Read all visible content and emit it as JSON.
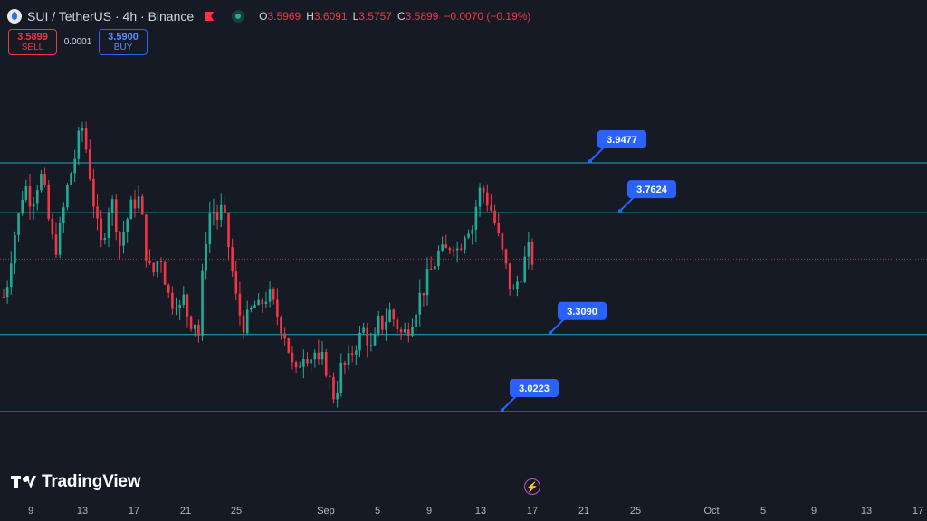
{
  "header": {
    "title": "SUI / TetherUS · 4h · Binance",
    "ohlc": [
      {
        "k": "O",
        "v": "3.5969"
      },
      {
        "k": "H",
        "v": "3.6091"
      },
      {
        "k": "L",
        "v": "3.5757"
      },
      {
        "k": "C",
        "v": "3.5899"
      }
    ],
    "change": "−0.0070 (−0.19%)"
  },
  "trade": {
    "sell_price": "3.5899",
    "sell_label": "SELL",
    "spread": "0.0001",
    "buy_price": "3.5900",
    "buy_label": "BUY"
  },
  "branding": {
    "logo_text": "TradingView"
  },
  "colors": {
    "background": "#161a25",
    "up": "#22ab94",
    "down": "#f23645",
    "level_line": "#26a6c9",
    "label_bg": "#2962ff",
    "current_price_line": "#f23645"
  },
  "icons": [
    "sui-logo-icon",
    "flag-icon",
    "market-status-icon",
    "tradingview-logo-icon",
    "bolt-icon"
  ],
  "chart_data": {
    "type": "candlestick",
    "symbol": "SUI / TetherUS",
    "interval": "4h",
    "exchange": "Binance",
    "x_tick_labels": [
      "9",
      "13",
      "17",
      "21",
      "25",
      "Sep",
      "5",
      "9",
      "13",
      "17",
      "21",
      "25",
      "Oct",
      "5",
      "9",
      "13",
      "17"
    ],
    "y_range": [
      2.7,
      4.5
    ],
    "current_price": 3.5899,
    "grid": false,
    "horizontal_levels": [
      {
        "value": 3.9477,
        "label": "3.9477"
      },
      {
        "value": 3.7624,
        "label": "3.7624"
      },
      {
        "value": 3.309,
        "label": "3.3090"
      },
      {
        "value": 3.0223,
        "label": "3.0223"
      }
    ],
    "price_path": [
      3.45,
      3.52,
      3.66,
      3.72,
      3.83,
      3.86,
      3.8,
      3.86,
      3.9,
      3.82,
      3.7,
      3.62,
      3.68,
      3.78,
      3.88,
      3.94,
      4.02,
      4.08,
      3.98,
      3.86,
      3.72,
      3.64,
      3.72,
      3.82,
      3.76,
      3.64,
      3.7,
      3.76,
      3.8,
      3.82,
      3.72,
      3.58,
      3.52,
      3.58,
      3.6,
      3.5,
      3.42,
      3.46,
      3.4,
      3.45,
      3.35,
      3.38,
      3.3,
      3.55,
      3.74,
      3.78,
      3.74,
      3.77,
      3.7,
      3.58,
      3.45,
      3.38,
      3.34,
      3.38,
      3.42,
      3.4,
      3.44,
      3.46,
      3.42,
      3.38,
      3.34,
      3.3,
      3.2,
      3.15,
      3.22,
      3.26,
      3.22,
      3.25,
      3.18,
      3.22,
      3.16,
      3.08,
      3.12,
      3.2,
      3.18,
      3.24,
      3.28,
      3.3,
      3.34,
      3.24,
      3.28,
      3.36,
      3.34,
      3.4,
      3.37,
      3.34,
      3.3,
      3.33,
      3.37,
      3.42,
      3.46,
      3.5,
      3.54,
      3.58,
      3.62,
      3.6,
      3.64,
      3.66,
      3.62,
      3.68,
      3.72,
      3.7,
      3.8,
      3.86,
      3.82,
      3.78,
      3.72,
      3.64,
      3.58,
      3.5,
      3.46,
      3.52,
      3.56,
      3.62,
      3.59
    ]
  }
}
